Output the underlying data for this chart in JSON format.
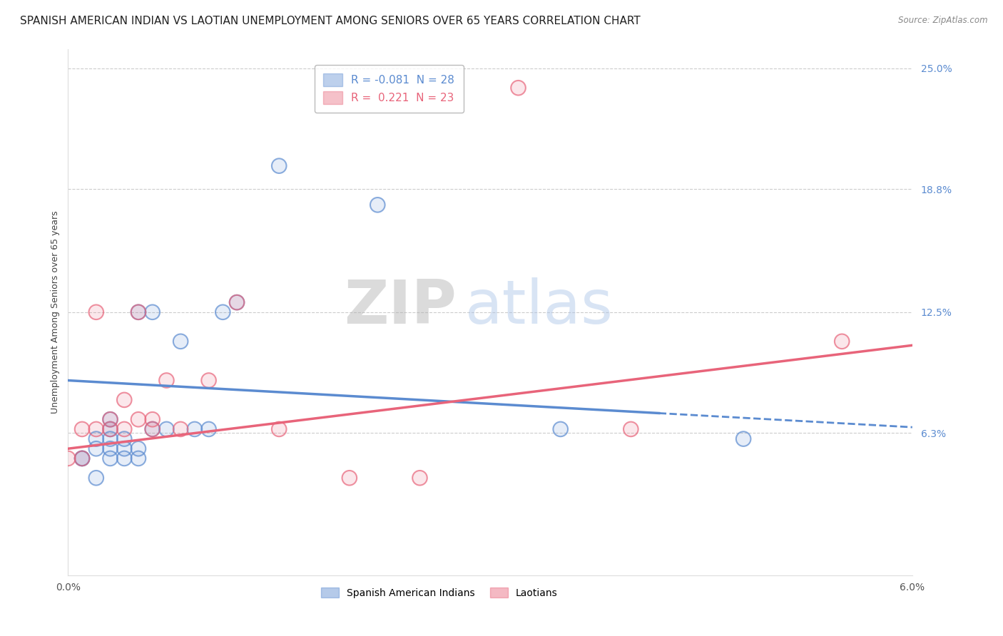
{
  "title": "SPANISH AMERICAN INDIAN VS LAOTIAN UNEMPLOYMENT AMONG SENIORS OVER 65 YEARS CORRELATION CHART",
  "source": "Source: ZipAtlas.com",
  "ylabel": "Unemployment Among Seniors over 65 years",
  "xlim": [
    0.0,
    0.06
  ],
  "ylim": [
    -0.01,
    0.26
  ],
  "ytick_positions": [
    0.063,
    0.125,
    0.188,
    0.25
  ],
  "yticklabels": [
    "6.3%",
    "12.5%",
    "18.8%",
    "25.0%"
  ],
  "blue_color": "#5b8bd0",
  "pink_color": "#e8647a",
  "watermark_zip": "ZIP",
  "watermark_atlas": "atlas",
  "blue_scatter_x": [
    0.001,
    0.001,
    0.002,
    0.002,
    0.002,
    0.003,
    0.003,
    0.003,
    0.003,
    0.003,
    0.004,
    0.004,
    0.004,
    0.005,
    0.005,
    0.005,
    0.006,
    0.006,
    0.007,
    0.008,
    0.009,
    0.01,
    0.011,
    0.012,
    0.015,
    0.022,
    0.035,
    0.048
  ],
  "blue_scatter_y": [
    0.05,
    0.05,
    0.04,
    0.06,
    0.055,
    0.05,
    0.055,
    0.06,
    0.065,
    0.07,
    0.05,
    0.055,
    0.06,
    0.05,
    0.055,
    0.125,
    0.065,
    0.125,
    0.065,
    0.11,
    0.065,
    0.065,
    0.125,
    0.13,
    0.2,
    0.18,
    0.065,
    0.06
  ],
  "pink_scatter_x": [
    0.0,
    0.001,
    0.001,
    0.002,
    0.002,
    0.003,
    0.003,
    0.004,
    0.004,
    0.005,
    0.005,
    0.006,
    0.006,
    0.007,
    0.008,
    0.01,
    0.012,
    0.015,
    0.02,
    0.025,
    0.032,
    0.04,
    0.055
  ],
  "pink_scatter_y": [
    0.05,
    0.05,
    0.065,
    0.065,
    0.125,
    0.065,
    0.07,
    0.08,
    0.065,
    0.07,
    0.125,
    0.07,
    0.065,
    0.09,
    0.065,
    0.09,
    0.13,
    0.065,
    0.04,
    0.04,
    0.24,
    0.065,
    0.11
  ],
  "grid_color": "#cccccc",
  "background_color": "#ffffff",
  "title_fontsize": 11,
  "axis_fontsize": 9,
  "tick_fontsize": 10,
  "blue_line_y0": 0.09,
  "blue_line_y1": 0.066,
  "pink_line_y0": 0.055,
  "pink_line_y1": 0.108
}
